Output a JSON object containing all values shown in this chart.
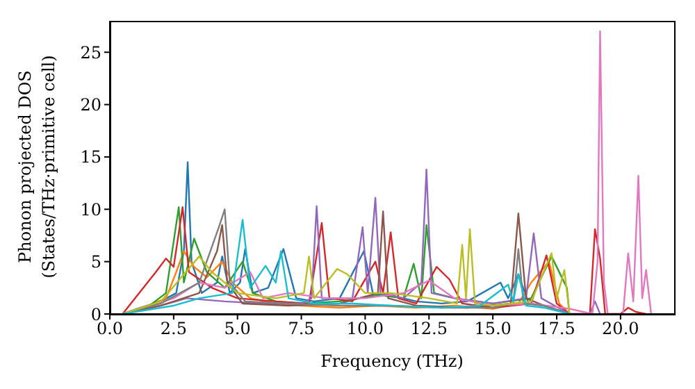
{
  "chart_data": {
    "type": "line",
    "xlabel": "Frequency (THz)",
    "ylabel": "Phonon projected DOS\n(States/THz·primitive cell)",
    "xlim": [
      0,
      22.1
    ],
    "ylim": [
      0,
      28
    ],
    "xticks": [
      {
        "value": 0,
        "label": "0.0"
      },
      {
        "value": 2.5,
        "label": "2.5"
      },
      {
        "value": 5,
        "label": "5.0"
      },
      {
        "value": 7.5,
        "label": "7.5"
      },
      {
        "value": 10,
        "label": "10.0"
      },
      {
        "value": 12.5,
        "label": "12.5"
      },
      {
        "value": 15,
        "label": "15.0"
      },
      {
        "value": 17.5,
        "label": "17.5"
      },
      {
        "value": 20,
        "label": "20.0"
      }
    ],
    "yticks": [
      0,
      5,
      10,
      15,
      20,
      25
    ],
    "marker": "none",
    "line_style": "solid",
    "series": [
      {
        "color": "#1f77b4",
        "x": [
          0.5,
          1.2,
          2.0,
          2.6,
          2.9,
          3.05,
          3.2,
          3.6,
          4.2,
          4.4,
          4.7,
          5.1,
          5.3,
          5.6,
          6.2,
          6.8,
          7.3,
          8.0,
          9.0,
          9.95,
          10.3,
          11.0,
          12.0,
          13.0,
          14.0,
          15.3,
          15.6,
          16.0,
          16.4,
          17.0,
          18.0
        ],
        "values": [
          0,
          0.6,
          1.2,
          2,
          6,
          14.5,
          5,
          2,
          3,
          5.5,
          2,
          3,
          6.2,
          2,
          2.5,
          6.2,
          1.5,
          1.2,
          1.5,
          6,
          2,
          1.8,
          1.2,
          1,
          1.2,
          3,
          1.5,
          3.8,
          1,
          0.8,
          0
        ]
      },
      {
        "color": "#ff7f0e",
        "x": [
          0.5,
          1.5,
          2.2,
          2.6,
          2.9,
          3.3,
          3.8,
          4.4,
          4.8,
          5.5,
          6.5,
          7.5,
          9.0,
          10.5,
          12.0,
          13.5,
          15.0,
          16.0,
          16.5,
          17.2,
          17.6,
          18.0
        ],
        "values": [
          0,
          0.8,
          1.5,
          4,
          6,
          4.5,
          3.5,
          5,
          3,
          1.5,
          1,
          0.8,
          0.6,
          0.8,
          0.6,
          0.8,
          0.5,
          1,
          3,
          5,
          1,
          0
        ]
      },
      {
        "color": "#2ca02c",
        "x": [
          0.5,
          1.5,
          2.2,
          2.7,
          2.9,
          3.3,
          3.8,
          4.5,
          5.2,
          5.6,
          6.5,
          7.5,
          9.0,
          10.5,
          11.5,
          11.9,
          12.2,
          12.4,
          12.7,
          13.5,
          15.0,
          16.5,
          17.3,
          17.9,
          18.0
        ],
        "values": [
          0,
          0.7,
          2,
          10.2,
          3,
          7.2,
          4,
          2.5,
          5,
          2,
          1.2,
          1,
          1.2,
          1.8,
          1.5,
          4.8,
          1.5,
          8.5,
          2,
          1.5,
          1,
          1.5,
          5.5,
          2.5,
          0
        ]
      },
      {
        "color": "#d62728",
        "x": [
          0.5,
          1.8,
          2.2,
          2.5,
          2.85,
          3.1,
          4.0,
          5.0,
          6.5,
          7.8,
          8.3,
          8.6,
          9.5,
          10.4,
          10.7,
          11.0,
          11.3,
          12.0,
          12.8,
          13.3,
          13.8,
          15.0,
          16.5,
          17.1,
          17.5,
          18.0,
          18.8,
          19.0,
          19.2,
          19.4,
          20.0,
          20.3,
          20.6,
          21.0
        ],
        "values": [
          0,
          4,
          5.3,
          4.5,
          10.2,
          4,
          2.5,
          1.5,
          1.2,
          1,
          8.7,
          1.5,
          1.2,
          5,
          2,
          7.8,
          1.5,
          1,
          4.5,
          3.3,
          1,
          0.6,
          1,
          5.6,
          1,
          0,
          0,
          8.1,
          5.3,
          0,
          0,
          0.6,
          0.2,
          0
        ]
      },
      {
        "color": "#9467bd",
        "x": [
          0.5,
          2.0,
          3.0,
          4.5,
          6.0,
          7.5,
          7.9,
          8.1,
          8.3,
          9.5,
          9.9,
          10.1,
          10.4,
          10.6,
          11.5,
          12.2,
          12.4,
          12.6,
          13.5,
          15.0,
          16.3,
          16.6,
          16.9,
          18.0,
          18.8,
          19.0,
          19.2
        ],
        "values": [
          0,
          0.8,
          1.5,
          1.2,
          1,
          1,
          1.5,
          10.3,
          1.5,
          1.5,
          8.3,
          2,
          11.1,
          2,
          1.5,
          3,
          13.8,
          2,
          1.5,
          1,
          1.5,
          7.7,
          1.5,
          0,
          0,
          1.2,
          0
        ]
      },
      {
        "color": "#8c564b",
        "x": [
          0.5,
          2.0,
          3.5,
          4.2,
          4.4,
          4.6,
          5.2,
          7.0,
          9.0,
          10.5,
          10.7,
          10.9,
          12.0,
          14.0,
          15.7,
          16.0,
          16.3,
          17.0,
          18.0
        ],
        "values": [
          0,
          0.8,
          2,
          6,
          8.5,
          3,
          1,
          0.8,
          1,
          2,
          9.8,
          1.5,
          0.8,
          0.6,
          1,
          9.6,
          1.5,
          0.8,
          0
        ]
      },
      {
        "color": "#e377c2",
        "x": [
          0.5,
          2.5,
          3.5,
          4.5,
          5.5,
          6.0,
          7.0,
          8.5,
          10.0,
          11.5,
          12.5,
          13.5,
          15.0,
          16.5,
          18.0,
          18.9,
          19.1,
          19.2,
          19.35,
          19.5,
          20.1,
          20.3,
          20.5,
          20.7,
          20.85,
          21.0,
          21.2
        ],
        "values": [
          0,
          1.5,
          3,
          2.5,
          4,
          1.5,
          2,
          1.5,
          1.5,
          2,
          3.2,
          1.5,
          0.8,
          1,
          0.5,
          0,
          5,
          27,
          3,
          0,
          0,
          5.8,
          1.2,
          13.2,
          1.5,
          4.2,
          0
        ]
      },
      {
        "color": "#7f7f7f",
        "x": [
          0.5,
          2.0,
          3.5,
          4.3,
          4.5,
          4.7,
          5.3,
          7.0,
          9.0,
          11.0,
          13.0,
          15.0,
          15.8,
          16.0,
          16.2,
          17.0,
          18.0
        ],
        "values": [
          0,
          1,
          3,
          8.5,
          10,
          3,
          1.2,
          1,
          0.8,
          0.8,
          0.6,
          0.6,
          1,
          6.2,
          1,
          0.8,
          0
        ]
      },
      {
        "color": "#bcbd22",
        "x": [
          0.5,
          2.0,
          3.5,
          4.0,
          5.0,
          6.5,
          7.6,
          7.8,
          8.0,
          8.9,
          9.3,
          10.0,
          11.0,
          12.5,
          13.6,
          13.8,
          13.95,
          14.1,
          14.3,
          15.0,
          16.5,
          17.3,
          17.5,
          17.8,
          18.0
        ],
        "values": [
          0,
          1.2,
          5.5,
          4,
          2,
          1.5,
          2,
          5.5,
          1.5,
          4.3,
          3.8,
          2,
          2,
          1.5,
          1,
          6.6,
          1.5,
          8.1,
          1,
          0.8,
          1.2,
          5.8,
          1.5,
          4.2,
          0
        ]
      },
      {
        "color": "#17becf",
        "x": [
          0.5,
          2.5,
          3.5,
          4.8,
          5.2,
          5.5,
          6.1,
          6.5,
          6.7,
          7.0,
          8.0,
          9.5,
          11.0,
          13.0,
          14.5,
          15.6,
          15.8,
          16.0,
          16.3,
          17.0,
          18.0
        ],
        "values": [
          0,
          0.8,
          1.5,
          2,
          9,
          2.5,
          4.6,
          3,
          6,
          1.5,
          1,
          1,
          0.8,
          0.6,
          0.8,
          2.8,
          1.2,
          3.8,
          0.8,
          0.6,
          0
        ]
      }
    ]
  }
}
